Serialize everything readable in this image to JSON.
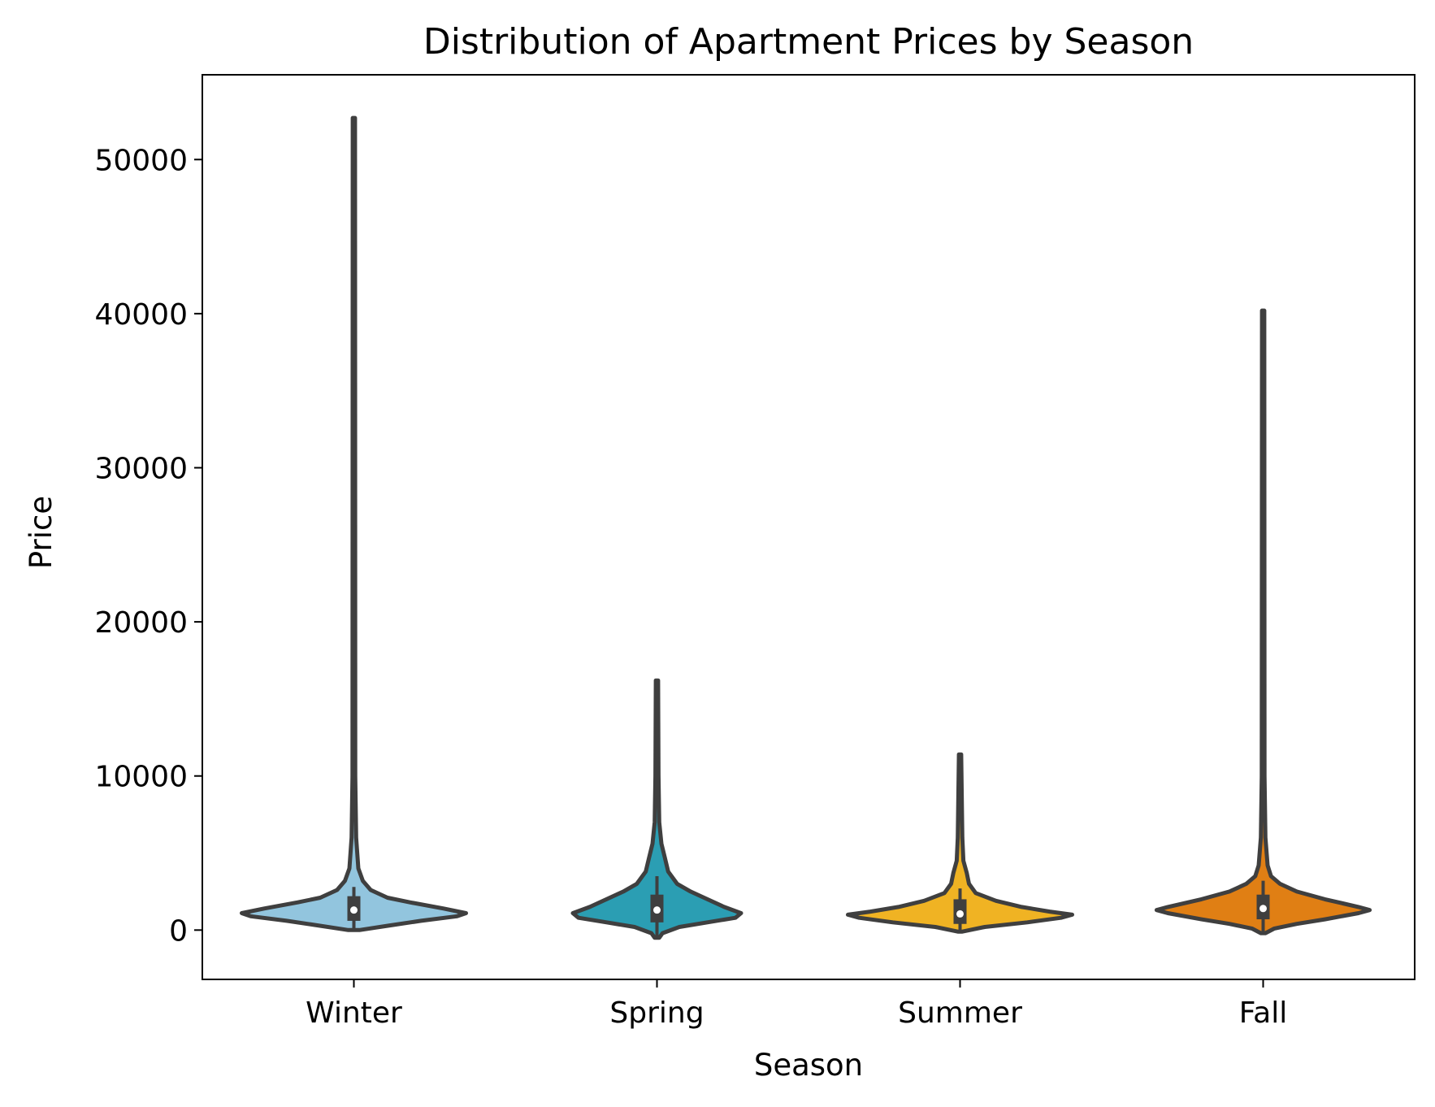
{
  "chart_data": {
    "type": "violin",
    "title": "Distribution of Apartment Prices by Season",
    "xlabel": "Season",
    "ylabel": "Price",
    "ylim": [
      -3200,
      55500
    ],
    "yticks": [
      0,
      10000,
      20000,
      30000,
      40000,
      50000
    ],
    "ytick_labels": [
      "0",
      "10000",
      "20000",
      "30000",
      "40000",
      "50000"
    ],
    "grid": false,
    "legend": "none",
    "categories": [
      "Winter",
      "Spring",
      "Summer",
      "Fall"
    ],
    "series": [
      {
        "category": "Winter",
        "color": "#92c5de",
        "min": 0,
        "q1": 600,
        "median": 1300,
        "q3": 2200,
        "whisker_high": 2800,
        "max": 52700,
        "density": [
          [
            0,
            0.05
          ],
          [
            300,
            0.32
          ],
          [
            600,
            0.6
          ],
          [
            900,
            0.92
          ],
          [
            1100,
            1.0
          ],
          [
            1400,
            0.8
          ],
          [
            1800,
            0.5
          ],
          [
            2100,
            0.3
          ],
          [
            2600,
            0.15
          ],
          [
            3200,
            0.08
          ],
          [
            4000,
            0.04
          ],
          [
            6000,
            0.02
          ],
          [
            10000,
            0.012
          ],
          [
            52700,
            0.01
          ]
        ]
      },
      {
        "category": "Spring",
        "color": "#2b9eb3",
        "min": -500,
        "q1": 500,
        "median": 1300,
        "q3": 2300,
        "whisker_high": 3500,
        "max": 16200,
        "density": [
          [
            -500,
            0.02
          ],
          [
            -200,
            0.05
          ],
          [
            200,
            0.2
          ],
          [
            500,
            0.45
          ],
          [
            800,
            0.7
          ],
          [
            1100,
            0.75
          ],
          [
            1500,
            0.6
          ],
          [
            2000,
            0.45
          ],
          [
            2500,
            0.3
          ],
          [
            3000,
            0.18
          ],
          [
            3800,
            0.1
          ],
          [
            4700,
            0.07
          ],
          [
            5600,
            0.04
          ],
          [
            7000,
            0.02
          ],
          [
            10000,
            0.014
          ],
          [
            16200,
            0.01
          ]
        ]
      },
      {
        "category": "Summer",
        "color": "#f0b323",
        "min": -100,
        "q1": 400,
        "median": 1050,
        "q3": 2000,
        "whisker_high": 2700,
        "max": 11400,
        "density": [
          [
            -100,
            0.02
          ],
          [
            200,
            0.22
          ],
          [
            500,
            0.6
          ],
          [
            800,
            0.9
          ],
          [
            1000,
            1.0
          ],
          [
            1200,
            0.8
          ],
          [
            1500,
            0.55
          ],
          [
            1900,
            0.32
          ],
          [
            2400,
            0.14
          ],
          [
            3000,
            0.08
          ],
          [
            3700,
            0.06
          ],
          [
            4500,
            0.03
          ],
          [
            6000,
            0.02
          ],
          [
            11400,
            0.01
          ]
        ]
      },
      {
        "category": "Fall",
        "color": "#e07f14",
        "min": -200,
        "q1": 700,
        "median": 1400,
        "q3": 2300,
        "whisker_high": 3200,
        "max": 40200,
        "density": [
          [
            -200,
            0.02
          ],
          [
            100,
            0.1
          ],
          [
            400,
            0.3
          ],
          [
            700,
            0.55
          ],
          [
            1100,
            0.85
          ],
          [
            1300,
            0.95
          ],
          [
            1500,
            0.85
          ],
          [
            2000,
            0.55
          ],
          [
            2500,
            0.3
          ],
          [
            3000,
            0.15
          ],
          [
            3500,
            0.07
          ],
          [
            4200,
            0.04
          ],
          [
            6000,
            0.02
          ],
          [
            10000,
            0.012
          ],
          [
            40200,
            0.01
          ]
        ]
      }
    ]
  }
}
